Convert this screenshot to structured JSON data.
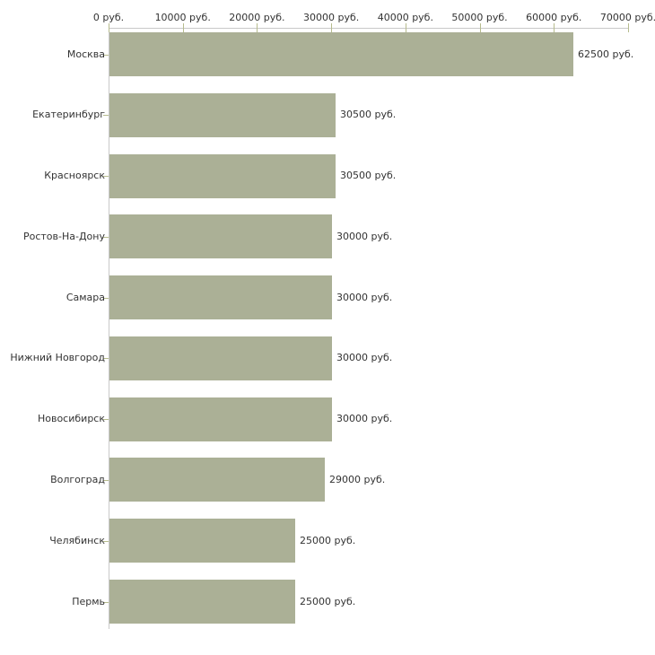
{
  "chart_data": {
    "type": "bar",
    "orientation": "horizontal",
    "title": "",
    "xlabel": "",
    "ylabel": "",
    "unit": "руб.",
    "categories": [
      "Москва",
      "Екатеринбург",
      "Красноярск",
      "Ростов-На-Дону",
      "Самара",
      "Нижний Новгород",
      "Новосибирск",
      "Волгоград",
      "Челябинск",
      "Пермь"
    ],
    "values": [
      62500,
      30500,
      30500,
      30000,
      30000,
      30000,
      30000,
      29000,
      25000,
      25000
    ],
    "value_labels": [
      "62500 руб.",
      "30500 руб.",
      "30500 руб.",
      "30000 руб.",
      "30000 руб.",
      "30000 руб.",
      "30000 руб.",
      "29000 руб.",
      "25000 руб.",
      "25000 руб."
    ],
    "x_ticks": [
      0,
      10000,
      20000,
      30000,
      40000,
      50000,
      60000,
      70000
    ],
    "x_tick_labels": [
      "0 руб.",
      "10000 руб.",
      "20000 руб.",
      "30000 руб.",
      "40000 руб.",
      "50000 руб.",
      "60000 руб.",
      "70000 руб."
    ],
    "xlim": [
      0,
      70000
    ],
    "grid": false,
    "legend": false,
    "legend_position": "none",
    "colors": {
      "bar": "#abb096",
      "tick": "#b7bc8e",
      "axis": "#c9c9c9",
      "text": "#333333",
      "background": "#ffffff"
    }
  }
}
